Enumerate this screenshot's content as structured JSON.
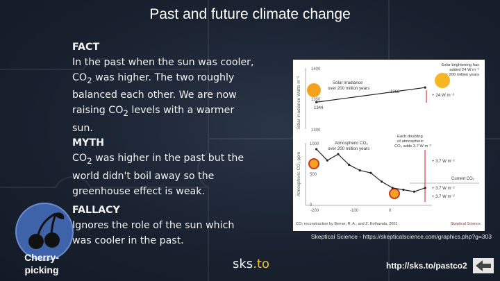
{
  "slide": {
    "title": "Past and future climate change"
  },
  "text": {
    "fact_head": "FACT",
    "fact_body_1": "In the past when the sun was cooler, CO",
    "fact_body_sub1": "2",
    "fact_body_2": " was higher. The two roughly balanced each other. We are now raising CO",
    "fact_body_sub2": "2",
    "fact_body_3": " levels with a warmer sun.",
    "myth_head": "MYTH",
    "myth_body_1": "CO",
    "myth_body_sub": "2",
    "myth_body_2": " was higher in the past but the world didn't boil away so the greenhouse effect is weak.",
    "fallacy_head": "FALLACY",
    "fallacy_body": "Ignores the role of the sun which was cooler in the past."
  },
  "figure": {
    "solar": {
      "ylabel": "Solar irradiance Watts m⁻²",
      "yticks": [
        "1400",
        "1350",
        "1300"
      ],
      "annot_left_1": "Solar irradiance",
      "annot_left_2": "over 200 million years",
      "annot_right_1": "Solar brightening has",
      "annot_right_2": "added 24 W m⁻²",
      "annot_right_3": "over 200 million years",
      "value_start": "1344",
      "value_end": "1368",
      "delta": "+ 24 W m⁻²"
    },
    "co2": {
      "ylabel": "Atmospheric CO₂ ppm",
      "yticks": [
        "1000",
        "500",
        "0"
      ],
      "xticks": [
        "-200",
        "-100",
        "0"
      ],
      "annot_left_1": "Atmospheric CO₂",
      "annot_left_2": "over 200 million years",
      "annot_right_1": "Each doubling",
      "annot_right_2": "of atmospheric",
      "annot_right_3": "CO₂ adds 3.7 W m⁻²",
      "forcing_1": "+ 3.7 W m⁻²",
      "current_label": "Current CO₂",
      "forcing_2": "+ 3.7 W m⁻²",
      "forcing_3": "+ 3.7 W m⁻²",
      "credit": "CO₂ reconstruction by Berner, R. A., and Z. Kothavala, 2001",
      "brand": "Skeptical Science"
    }
  },
  "chart_data": {
    "type": "line",
    "xlabel": "",
    "x_range": [
      -220,
      10
    ],
    "series": [
      {
        "name": "Solar irradiance",
        "x": [
          -200,
          0
        ],
        "values": [
          1344,
          1368
        ],
        "ylim": [
          1300,
          1400
        ]
      },
      {
        "name": "Atmospheric CO₂",
        "x": [
          -200,
          -180,
          -160,
          -140,
          -120,
          -100,
          -80,
          -60,
          -40,
          -20,
          0
        ],
        "values": [
          900,
          720,
          820,
          650,
          560,
          520,
          380,
          280,
          250,
          220,
          280
        ],
        "ylim": [
          0,
          1000
        ]
      }
    ]
  },
  "footer": {
    "caption": "Skeptical Science - https://skepticalscience.com/graphics.php?g=303",
    "logo_a": "sks",
    "logo_b": ".to",
    "url": "http://sks.to/pastco2",
    "cherry_label_1": "Cherry-",
    "cherry_label_2": "picking"
  },
  "colors": {
    "background": "#1a2231",
    "accent": "#f0c040",
    "badge": "#3f63a8",
    "arrow": "#e23a3a"
  }
}
